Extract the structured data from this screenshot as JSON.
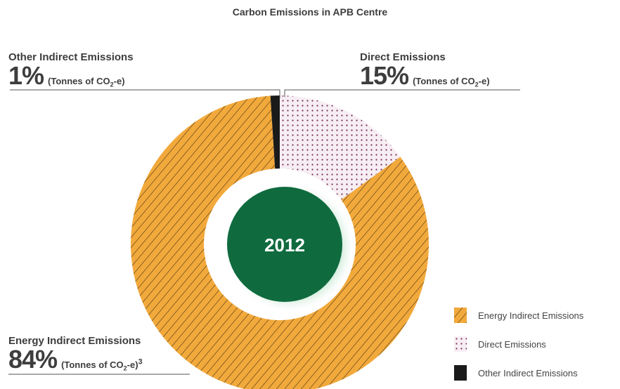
{
  "chart_data": {
    "type": "pie",
    "title": "Carbon Emissions in APB Centre",
    "center_label": "2012",
    "unit": "(Tonnes of CO2-e)",
    "categories": [
      "Energy Indirect Emissions",
      "Direct Emissions",
      "Other Indirect Emissions"
    ],
    "values": [
      84,
      15,
      1
    ],
    "value_labels": [
      "84%",
      "15%",
      "1%"
    ],
    "footnote_mark": "3",
    "colors": {
      "Energy Indirect Emissions": "#f2a93b",
      "Direct Emissions": "#f6eef3",
      "Other Indirect Emissions": "#1a1a1a",
      "center": "#0f6b3e"
    },
    "legend": {
      "placement": "bottom-right",
      "entries": [
        "Energy Indirect Emissions",
        "Direct Emissions",
        "Other Indirect Emissions"
      ]
    }
  }
}
